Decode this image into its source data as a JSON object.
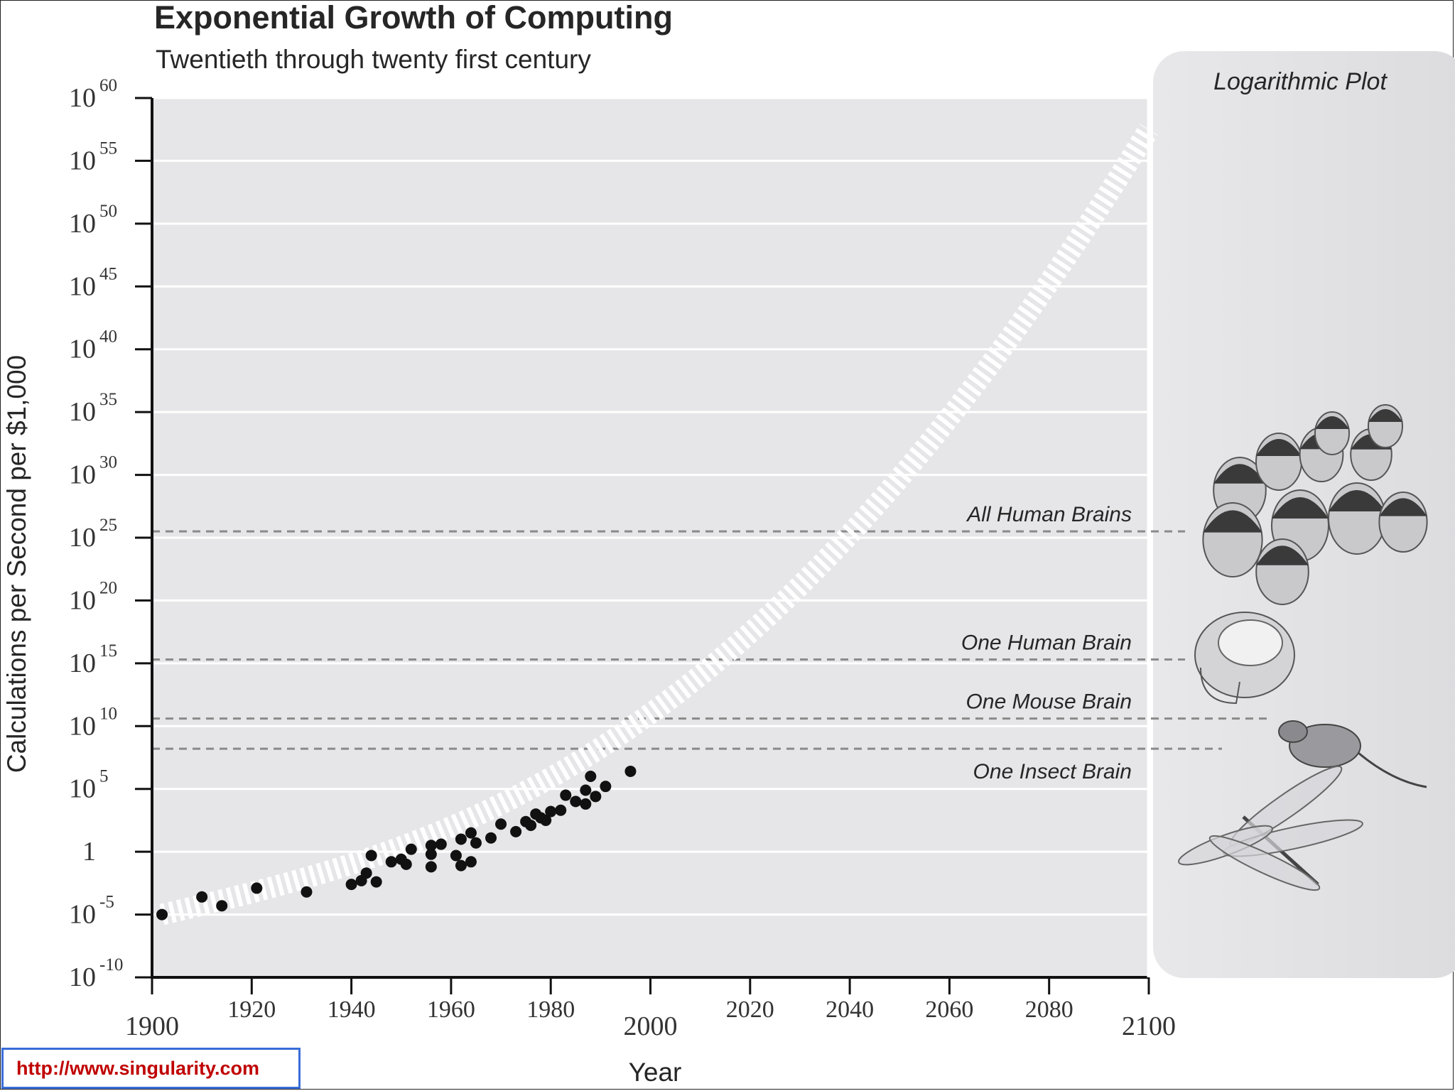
{
  "chart_data": {
    "type": "scatter",
    "title": "Exponential Growth of Computing",
    "subtitle": "Twentieth through twenty first century",
    "xlabel": "Year",
    "ylabel": "Calculations per Second per $1,000",
    "y_scale": "log10",
    "xlim": [
      1900,
      2100
    ],
    "ylim_exponent": [
      -10,
      60
    ],
    "x_ticks": [
      1900,
      1920,
      1940,
      1960,
      1980,
      2000,
      2020,
      2040,
      2060,
      2080,
      2100
    ],
    "y_ticks": [
      {
        "exp": 60,
        "base": "10",
        "sup": "60"
      },
      {
        "exp": 55,
        "base": "10",
        "sup": "55"
      },
      {
        "exp": 50,
        "base": "10",
        "sup": "50"
      },
      {
        "exp": 45,
        "base": "10",
        "sup": "45"
      },
      {
        "exp": 40,
        "base": "10",
        "sup": "40"
      },
      {
        "exp": 35,
        "base": "10",
        "sup": "35"
      },
      {
        "exp": 30,
        "base": "10",
        "sup": "30"
      },
      {
        "exp": 25,
        "base": "10",
        "sup": "25"
      },
      {
        "exp": 20,
        "base": "10",
        "sup": "20"
      },
      {
        "exp": 15,
        "base": "10",
        "sup": "15"
      },
      {
        "exp": 10,
        "base": "10",
        "sup": "10"
      },
      {
        "exp": 5,
        "base": "10",
        "sup": "5"
      },
      {
        "exp": 0,
        "base": "1",
        "sup": ""
      },
      {
        "exp": -5,
        "base": "10",
        "sup": "-5"
      },
      {
        "exp": -10,
        "base": "10",
        "sup": "-10"
      }
    ],
    "grid": true,
    "inset_label": "Logarithmic Plot",
    "reference_lines": [
      {
        "label": "All Human Brains",
        "log10_value": 25.5
      },
      {
        "label": "One Human Brain",
        "log10_value": 15.3
      },
      {
        "label": "One Mouse Brain",
        "log10_value": 10.6
      },
      {
        "label": "One Insect Brain",
        "log10_value": 8.2
      }
    ],
    "points": [
      {
        "x": 1902,
        "y": -5.0
      },
      {
        "x": 1910,
        "y": -3.6
      },
      {
        "x": 1914,
        "y": -4.3
      },
      {
        "x": 1921,
        "y": -2.9
      },
      {
        "x": 1931,
        "y": -3.2
      },
      {
        "x": 1940,
        "y": -2.6
      },
      {
        "x": 1942,
        "y": -2.3
      },
      {
        "x": 1943,
        "y": -1.7
      },
      {
        "x": 1944,
        "y": -0.3
      },
      {
        "x": 1945,
        "y": -2.4
      },
      {
        "x": 1948,
        "y": -0.8
      },
      {
        "x": 1950,
        "y": -0.6
      },
      {
        "x": 1951,
        "y": -1.0
      },
      {
        "x": 1952,
        "y": 0.2
      },
      {
        "x": 1956,
        "y": 0.5
      },
      {
        "x": 1956,
        "y": -0.2
      },
      {
        "x": 1956,
        "y": -1.2
      },
      {
        "x": 1958,
        "y": 0.6
      },
      {
        "x": 1961,
        "y": -0.3
      },
      {
        "x": 1962,
        "y": -1.1
      },
      {
        "x": 1962,
        "y": 1.0
      },
      {
        "x": 1964,
        "y": -0.8
      },
      {
        "x": 1964,
        "y": 1.5
      },
      {
        "x": 1965,
        "y": 0.7
      },
      {
        "x": 1968,
        "y": 1.1
      },
      {
        "x": 1970,
        "y": 2.2
      },
      {
        "x": 1973,
        "y": 1.6
      },
      {
        "x": 1975,
        "y": 2.4
      },
      {
        "x": 1976,
        "y": 2.1
      },
      {
        "x": 1977,
        "y": 3.0
      },
      {
        "x": 1978,
        "y": 2.7
      },
      {
        "x": 1979,
        "y": 2.5
      },
      {
        "x": 1980,
        "y": 3.2
      },
      {
        "x": 1982,
        "y": 3.3
      },
      {
        "x": 1983,
        "y": 4.5
      },
      {
        "x": 1985,
        "y": 4.0
      },
      {
        "x": 1987,
        "y": 4.9
      },
      {
        "x": 1987,
        "y": 3.8
      },
      {
        "x": 1988,
        "y": 6.0
      },
      {
        "x": 1989,
        "y": 4.4
      },
      {
        "x": 1991,
        "y": 5.2
      },
      {
        "x": 1996,
        "y": 6.4
      }
    ],
    "trend": {
      "style": "dashed white band",
      "start": {
        "x": 1902,
        "y": -5.0
      },
      "end": {
        "x": 2100,
        "y": 57.5
      }
    }
  },
  "footer": {
    "url": "http://www.singularity.com"
  },
  "colors": {
    "plot_bg": "#e6e6e8",
    "grid": "#ffffff",
    "points": "#111111",
    "ref_line": "#8a8a8a",
    "url_text": "#c00000",
    "url_border": "#3a6ed8"
  }
}
